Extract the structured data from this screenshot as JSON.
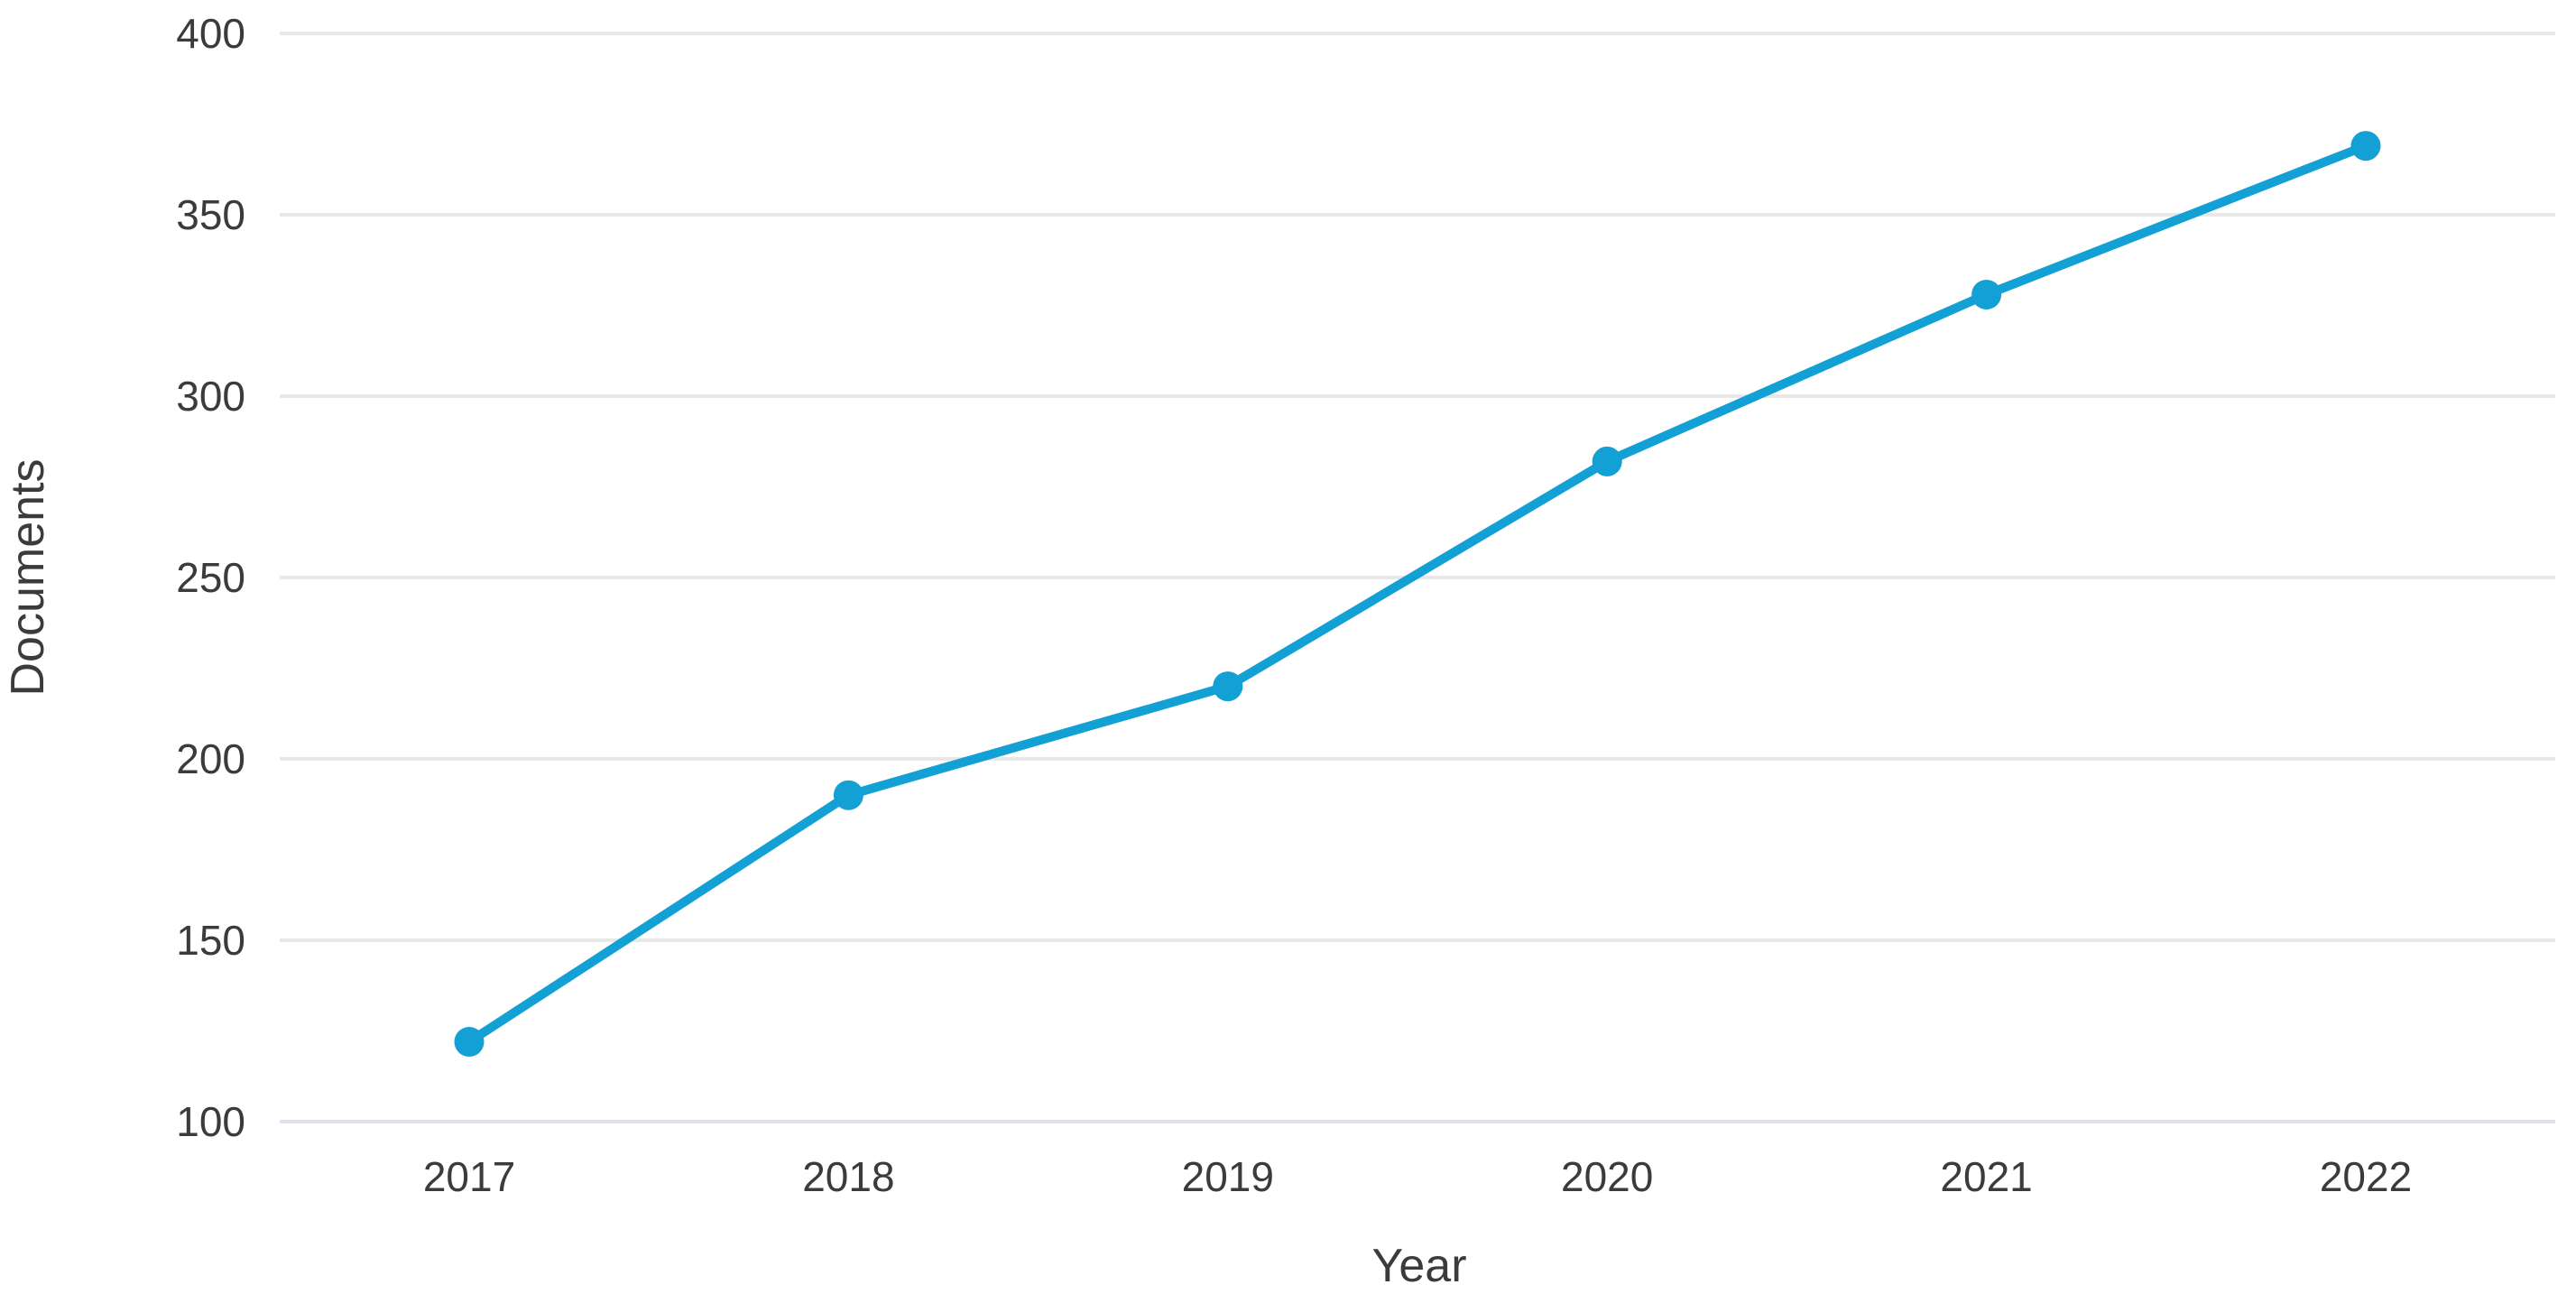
{
  "page": {
    "background": "#ffffff"
  },
  "chart_data": {
    "type": "line",
    "title": "",
    "xlabel": "Year",
    "ylabel": "Documents",
    "categories": [
      "2017",
      "2018",
      "2019",
      "2020",
      "2021",
      "2022"
    ],
    "series": [
      {
        "name": "Documents",
        "values": [
          122,
          190,
          220,
          282,
          328,
          369
        ]
      }
    ],
    "ylim": [
      100,
      400
    ],
    "yticks": [
      100,
      150,
      200,
      250,
      300,
      350,
      400
    ],
    "grid": "horizontal",
    "legend_position": "none",
    "marker": "circle",
    "colors": {
      "line": "#12a0d5",
      "marker": "#12a0d5",
      "gridline": "#e8e8e8",
      "baseline": "#dde2ee",
      "text": "#3b3b3b"
    }
  }
}
